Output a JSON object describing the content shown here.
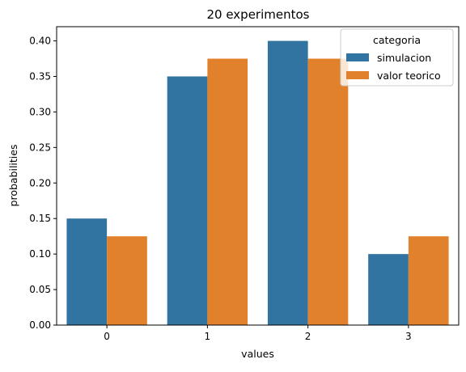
{
  "chart_data": {
    "type": "bar",
    "title": "20 experimentos",
    "xlabel": "values",
    "ylabel": "probabilities",
    "categories": [
      "0",
      "1",
      "2",
      "3"
    ],
    "series": [
      {
        "name": "simulacion",
        "values": [
          0.15,
          0.35,
          0.4,
          0.1
        ],
        "color": "#3274a1"
      },
      {
        "name": "valor teorico",
        "values": [
          0.125,
          0.375,
          0.375,
          0.125
        ],
        "color": "#e1812c"
      }
    ],
    "ylim": [
      0,
      0.42
    ],
    "yticks": [
      "0.00",
      "0.05",
      "0.10",
      "0.15",
      "0.20",
      "0.25",
      "0.30",
      "0.35",
      "0.40"
    ],
    "grid": false,
    "legend": {
      "title": "categoria",
      "placement": "top-right"
    }
  }
}
